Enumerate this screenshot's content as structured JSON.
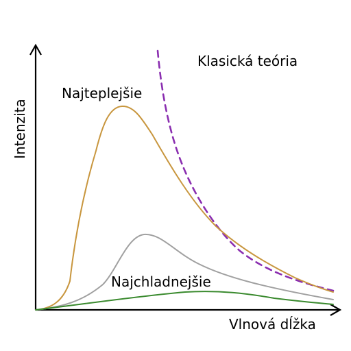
{
  "labels": {
    "y_axis": "Intenzita",
    "x_axis": "Vlnová dĺžka",
    "classical": "Klasická teória",
    "hottest": "Najteplejšie",
    "coldest": "Najchladnejšie"
  },
  "colors": {
    "axes": "#000000",
    "hottest_curve": "#c8963e",
    "middle_curve": "#a0a0a0",
    "coldest_curve": "#3a8a2e",
    "classical_curve": "#8a2eb0"
  }
}
